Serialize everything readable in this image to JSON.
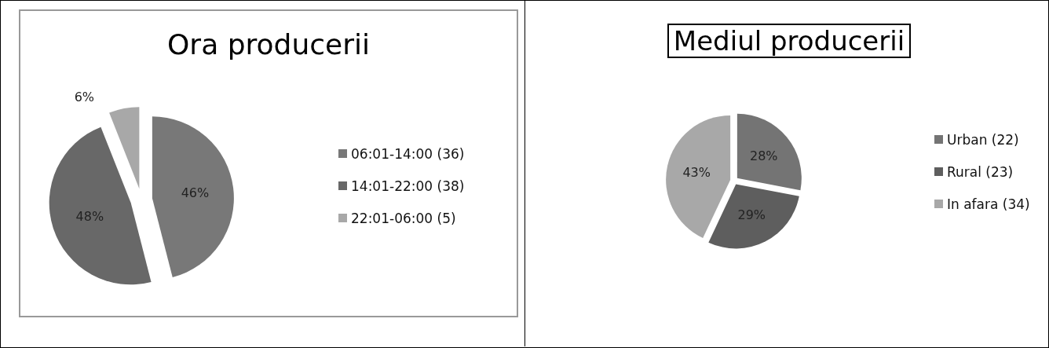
{
  "chart_data": [
    {
      "type": "pie",
      "title": "Ora producerii",
      "categories": [
        "06:01-14:00 (36)",
        "14:01-22:00 (38)",
        "22:01-06:00 (5)"
      ],
      "values": [
        46,
        48,
        6
      ],
      "value_labels": [
        "46%",
        "48%",
        "6%"
      ],
      "colors": [
        "#787878",
        "#686868",
        "#a8a8a8"
      ],
      "legend": "right"
    },
    {
      "type": "pie",
      "title": "Mediul producerii",
      "categories": [
        "Urban (22)",
        "Rural (23)",
        "In afara (34)"
      ],
      "values": [
        28,
        29,
        43
      ],
      "value_labels": [
        "28%",
        "29%",
        "43%"
      ],
      "colors": [
        "#747474",
        "#5e5e5e",
        "#a8a8a8"
      ],
      "legend": "right"
    }
  ]
}
